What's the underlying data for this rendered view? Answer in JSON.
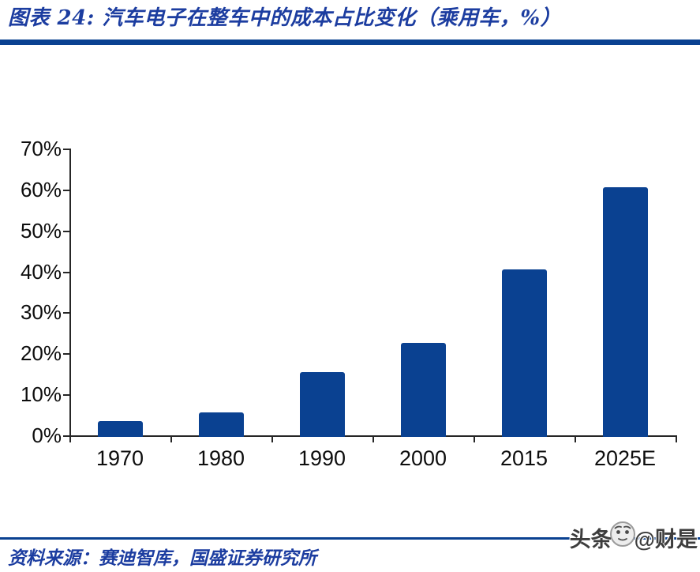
{
  "header": {
    "title": "图表 24:  汽车电子在整车中的成本占比变化（乘用车，%）"
  },
  "chart_data": {
    "type": "bar",
    "title": "汽车电子在整车中的成本占比变化（乘用车，%）",
    "categories": [
      "1970",
      "1980",
      "1990",
      "2000",
      "2015",
      "2025E"
    ],
    "values": [
      3.5,
      5.5,
      15.5,
      22.5,
      40.5,
      60.5
    ],
    "xlabel": "",
    "ylabel": "",
    "ylim": [
      0,
      70
    ],
    "ytick_labels": [
      "0%",
      "10%",
      "20%",
      "30%",
      "40%",
      "50%",
      "60%",
      "70%"
    ],
    "grid": false,
    "legend": "none",
    "bar_color": "#0a4191",
    "axis_color": "#262626"
  },
  "footer": {
    "source": "资料来源：赛迪智库，国盛证券研究所"
  },
  "watermark": {
    "prefix": "头条",
    "suffix": "@财是",
    "icon": "toutiao-face-icon"
  },
  "colors": {
    "brand_blue": "#0a4191",
    "text_blue": "#1c3da0",
    "label_black": "#0d0d0d",
    "watermark_gray": "#3d3d3d"
  }
}
